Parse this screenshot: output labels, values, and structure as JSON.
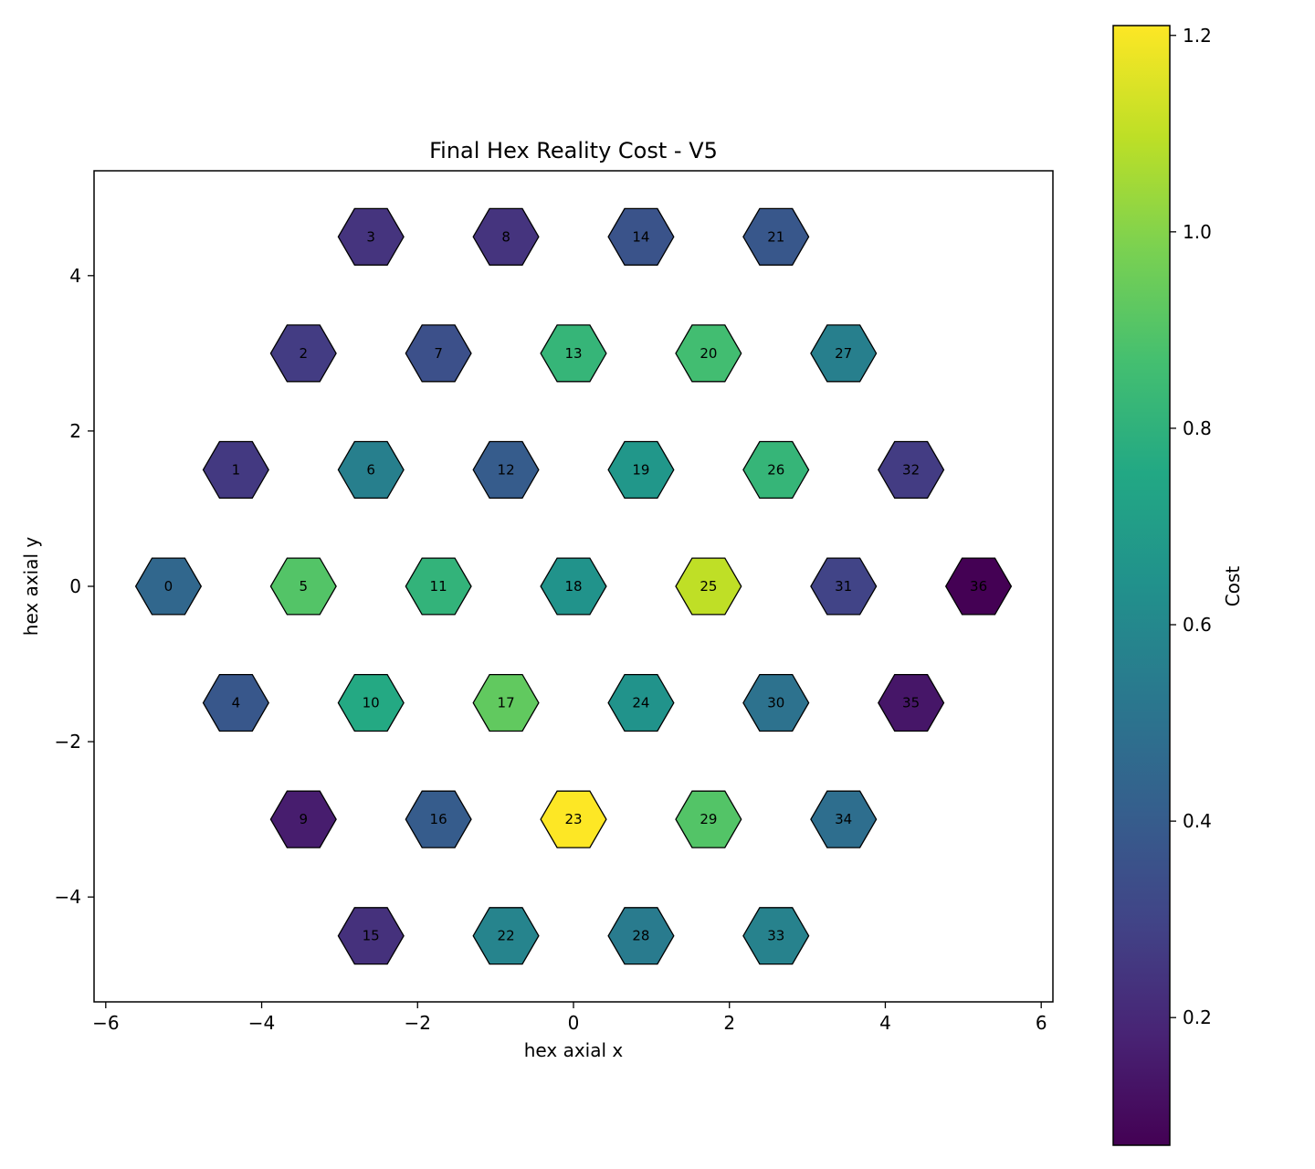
{
  "chart_data": {
    "type": "heatmap",
    "title": "Final Hex Reality Cost - V5",
    "xlabel": "hex axial x",
    "ylabel": "hex axial y",
    "xlim": [
      -6.15,
      6.15
    ],
    "ylim": [
      -5.35,
      5.35
    ],
    "xticks": [
      -6,
      -4,
      -2,
      0,
      2,
      4,
      6
    ],
    "yticks": [
      -4,
      -2,
      0,
      2,
      4
    ],
    "colorbar": {
      "label": "Cost",
      "range": [
        0.07,
        1.21
      ],
      "ticks": [
        0.2,
        0.4,
        0.6,
        0.8,
        1.0,
        1.2
      ],
      "colormap": "viridis"
    },
    "cells": [
      {
        "id": "0",
        "x": -5.196,
        "y": 0.0,
        "cost": 0.45
      },
      {
        "id": "1",
        "x": -4.33,
        "y": 1.5,
        "cost": 0.26
      },
      {
        "id": "2",
        "x": -3.464,
        "y": 3.0,
        "cost": 0.27
      },
      {
        "id": "3",
        "x": -2.598,
        "y": 4.5,
        "cost": 0.24
      },
      {
        "id": "4",
        "x": -4.33,
        "y": -1.5,
        "cost": 0.38
      },
      {
        "id": "5",
        "x": -3.464,
        "y": 0.0,
        "cost": 0.9
      },
      {
        "id": "6",
        "x": -2.598,
        "y": 1.5,
        "cost": 0.56
      },
      {
        "id": "7",
        "x": -1.732,
        "y": 3.0,
        "cost": 0.35
      },
      {
        "id": "8",
        "x": -0.866,
        "y": 4.5,
        "cost": 0.24
      },
      {
        "id": "9",
        "x": -3.464,
        "y": -3.0,
        "cost": 0.16
      },
      {
        "id": "10",
        "x": -2.598,
        "y": -1.5,
        "cost": 0.76
      },
      {
        "id": "11",
        "x": -1.732,
        "y": 0.0,
        "cost": 0.81
      },
      {
        "id": "12",
        "x": -0.866,
        "y": 1.5,
        "cost": 0.4
      },
      {
        "id": "13",
        "x": 0.0,
        "y": 3.0,
        "cost": 0.82
      },
      {
        "id": "14",
        "x": 0.866,
        "y": 4.5,
        "cost": 0.36
      },
      {
        "id": "15",
        "x": -2.598,
        "y": -4.5,
        "cost": 0.23
      },
      {
        "id": "16",
        "x": -1.732,
        "y": -3.0,
        "cost": 0.4
      },
      {
        "id": "17",
        "x": -0.866,
        "y": -1.5,
        "cost": 0.93
      },
      {
        "id": "18",
        "x": 0.0,
        "y": 0.0,
        "cost": 0.65
      },
      {
        "id": "19",
        "x": 0.866,
        "y": 1.5,
        "cost": 0.67
      },
      {
        "id": "20",
        "x": 1.732,
        "y": 3.0,
        "cost": 0.86
      },
      {
        "id": "21",
        "x": 2.598,
        "y": 4.5,
        "cost": 0.38
      },
      {
        "id": "22",
        "x": -0.866,
        "y": -4.5,
        "cost": 0.58
      },
      {
        "id": "23",
        "x": 0.0,
        "y": -3.0,
        "cost": 1.21
      },
      {
        "id": "24",
        "x": 0.866,
        "y": -1.5,
        "cost": 0.65
      },
      {
        "id": "25",
        "x": 1.732,
        "y": 0.0,
        "cost": 1.1
      },
      {
        "id": "26",
        "x": 2.598,
        "y": 1.5,
        "cost": 0.82
      },
      {
        "id": "27",
        "x": 3.464,
        "y": 3.0,
        "cost": 0.56
      },
      {
        "id": "28",
        "x": 0.866,
        "y": -4.5,
        "cost": 0.54
      },
      {
        "id": "29",
        "x": 1.732,
        "y": -3.0,
        "cost": 0.9
      },
      {
        "id": "30",
        "x": 2.598,
        "y": -1.5,
        "cost": 0.5
      },
      {
        "id": "31",
        "x": 3.464,
        "y": 0.0,
        "cost": 0.3
      },
      {
        "id": "32",
        "x": 4.33,
        "y": 1.5,
        "cost": 0.27
      },
      {
        "id": "33",
        "x": 2.598,
        "y": -4.5,
        "cost": 0.57
      },
      {
        "id": "34",
        "x": 3.464,
        "y": -3.0,
        "cost": 0.48
      },
      {
        "id": "35",
        "x": 4.33,
        "y": -1.5,
        "cost": 0.14
      },
      {
        "id": "36",
        "x": 5.196,
        "y": 0.0,
        "cost": 0.07
      }
    ]
  }
}
